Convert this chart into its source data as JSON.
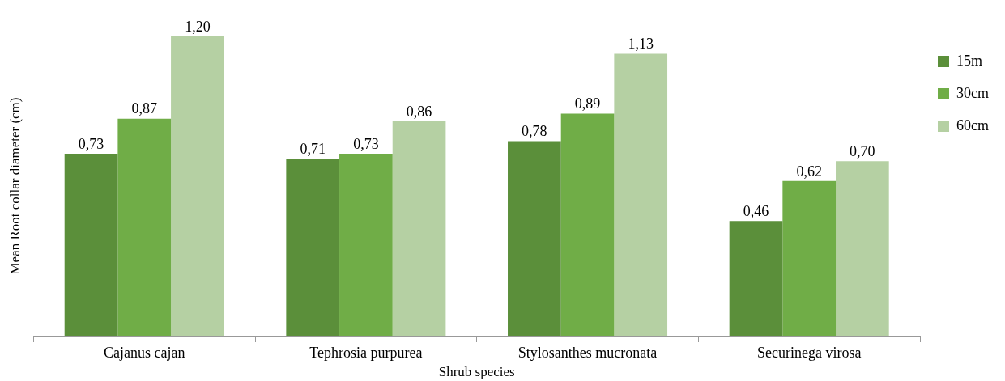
{
  "chart_data": {
    "type": "bar",
    "xlabel": "Shrub species",
    "ylabel": "Mean Root collar diameter (cm)",
    "categories": [
      "Cajanus cajan",
      "Tephrosia purpurea",
      "Stylosanthes mucronata",
      "Securinega virosa"
    ],
    "series": [
      {
        "name": "15m",
        "color": "#5b8f3a",
        "values": [
          0.73,
          0.71,
          0.78,
          0.46
        ],
        "value_labels": [
          "0,73",
          "0,71",
          "0,78",
          "0,46"
        ]
      },
      {
        "name": "30cm",
        "color": "#70ad47",
        "values": [
          0.87,
          0.73,
          0.89,
          0.62
        ],
        "value_labels": [
          "0,87",
          "0,73",
          "0,89",
          "0,62"
        ]
      },
      {
        "name": "60cm",
        "color": "#b5d0a3",
        "values": [
          1.2,
          0.86,
          1.13,
          0.7
        ],
        "value_labels": [
          "1,20",
          "0,86",
          "1,13",
          "0,70"
        ]
      }
    ],
    "legend": "top right"
  }
}
